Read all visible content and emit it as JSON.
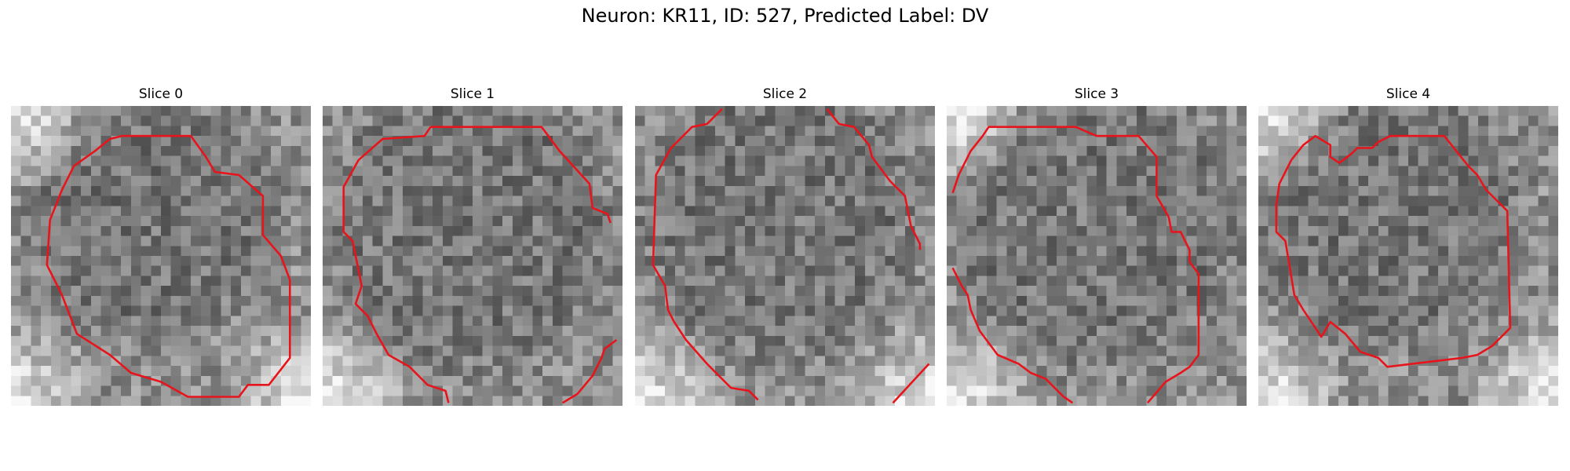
{
  "figure": {
    "title": "Neuron: KR11, ID: 527, Predicted Label: DV",
    "contour_color": "#e8141c"
  },
  "slices": [
    {
      "title": "Slice 0",
      "dark": [
        0.46,
        0.36,
        0.34
      ],
      "bright_corners": [
        "tl",
        "bl",
        "br"
      ],
      "lines": [
        [
          [
            0.37,
            0.1
          ],
          [
            0.6,
            0.1
          ],
          [
            0.65,
            0.17
          ],
          [
            0.68,
            0.22
          ],
          [
            0.76,
            0.23
          ],
          [
            0.84,
            0.3
          ],
          [
            0.84,
            0.43
          ],
          [
            0.9,
            0.5
          ],
          [
            0.93,
            0.58
          ],
          [
            0.93,
            0.84
          ],
          [
            0.86,
            0.93
          ],
          [
            0.79,
            0.93
          ],
          [
            0.76,
            0.97
          ],
          [
            0.59,
            0.97
          ],
          [
            0.5,
            0.92
          ],
          [
            0.4,
            0.89
          ],
          [
            0.33,
            0.83
          ],
          [
            0.22,
            0.76
          ],
          [
            0.17,
            0.63
          ],
          [
            0.12,
            0.53
          ],
          [
            0.13,
            0.38
          ],
          [
            0.17,
            0.28
          ],
          [
            0.21,
            0.2
          ],
          [
            0.28,
            0.15
          ],
          [
            0.33,
            0.11
          ],
          [
            0.37,
            0.1
          ]
        ]
      ]
    },
    {
      "title": "Slice 1",
      "dark": [
        0.5,
        0.4,
        0.4
      ],
      "bright_corners": [
        "bl"
      ],
      "lines": [
        [
          [
            0.36,
            0.07
          ],
          [
            0.73,
            0.07
          ],
          [
            0.79,
            0.15
          ],
          [
            0.89,
            0.26
          ],
          [
            0.9,
            0.34
          ],
          [
            0.95,
            0.36
          ],
          [
            0.96,
            0.39
          ]
        ],
        [
          [
            0.36,
            0.07
          ],
          [
            0.34,
            0.1
          ],
          [
            0.2,
            0.11
          ],
          [
            0.12,
            0.18
          ],
          [
            0.07,
            0.27
          ],
          [
            0.07,
            0.42
          ],
          [
            0.1,
            0.45
          ],
          [
            0.13,
            0.6
          ],
          [
            0.11,
            0.66
          ],
          [
            0.15,
            0.7
          ],
          [
            0.18,
            0.76
          ],
          [
            0.22,
            0.83
          ],
          [
            0.29,
            0.87
          ],
          [
            0.35,
            0.93
          ],
          [
            0.41,
            0.95
          ],
          [
            0.42,
            0.99
          ]
        ],
        [
          [
            0.8,
            0.99
          ],
          [
            0.85,
            0.96
          ],
          [
            0.9,
            0.9
          ],
          [
            0.93,
            0.84
          ],
          [
            0.94,
            0.81
          ],
          [
            0.98,
            0.78
          ]
        ],
        [
          [
            0.8,
            0.99
          ]
        ]
      ]
    },
    {
      "title": "Slice 2",
      "dark": [
        0.48,
        0.38,
        0.38
      ],
      "bright_corners": [
        "bl",
        "br"
      ],
      "lines": [
        [
          [
            0.29,
            0.01
          ],
          [
            0.24,
            0.06
          ],
          [
            0.19,
            0.07
          ],
          [
            0.12,
            0.14
          ],
          [
            0.07,
            0.23
          ],
          [
            0.06,
            0.53
          ],
          [
            0.1,
            0.6
          ],
          [
            0.11,
            0.68
          ],
          [
            0.13,
            0.72
          ],
          [
            0.17,
            0.78
          ],
          [
            0.24,
            0.86
          ],
          [
            0.32,
            0.94
          ],
          [
            0.38,
            0.95
          ],
          [
            0.41,
            0.98
          ]
        ],
        [
          [
            0.64,
            0.01
          ],
          [
            0.68,
            0.06
          ],
          [
            0.73,
            0.07
          ],
          [
            0.78,
            0.13
          ],
          [
            0.79,
            0.17
          ],
          [
            0.85,
            0.25
          ],
          [
            0.9,
            0.3
          ],
          [
            0.92,
            0.4
          ],
          [
            0.95,
            0.46
          ],
          [
            0.95,
            0.48
          ]
        ],
        [
          [
            0.86,
            0.99
          ],
          [
            0.98,
            0.86
          ]
        ]
      ]
    },
    {
      "title": "Slice 3",
      "dark": [
        0.5,
        0.4,
        0.4
      ],
      "bright_corners": [
        "tl",
        "bl"
      ],
      "lines": [
        [
          [
            0.02,
            0.29
          ],
          [
            0.04,
            0.23
          ],
          [
            0.06,
            0.19
          ],
          [
            0.08,
            0.15
          ],
          [
            0.12,
            0.1
          ],
          [
            0.14,
            0.07
          ],
          [
            0.43,
            0.07
          ],
          [
            0.5,
            0.1
          ],
          [
            0.64,
            0.1
          ],
          [
            0.7,
            0.17
          ],
          [
            0.7,
            0.3
          ],
          [
            0.74,
            0.37
          ],
          [
            0.75,
            0.42
          ],
          [
            0.78,
            0.42
          ],
          [
            0.81,
            0.48
          ],
          [
            0.81,
            0.52
          ],
          [
            0.84,
            0.56
          ],
          [
            0.84,
            0.83
          ],
          [
            0.81,
            0.87
          ],
          [
            0.78,
            0.89
          ],
          [
            0.73,
            0.92
          ],
          [
            0.67,
            0.99
          ]
        ],
        [
          [
            0.02,
            0.54
          ],
          [
            0.05,
            0.6
          ],
          [
            0.07,
            0.63
          ],
          [
            0.08,
            0.68
          ],
          [
            0.11,
            0.75
          ],
          [
            0.17,
            0.83
          ],
          [
            0.24,
            0.86
          ],
          [
            0.28,
            0.89
          ],
          [
            0.33,
            0.91
          ],
          [
            0.36,
            0.94
          ],
          [
            0.39,
            0.97
          ],
          [
            0.42,
            0.99
          ]
        ]
      ]
    },
    {
      "title": "Slice 4",
      "dark": [
        0.44,
        0.36,
        0.36
      ],
      "bright_corners": [
        "tl",
        "bl",
        "br"
      ],
      "lines": [
        [
          [
            0.11,
            0.18
          ],
          [
            0.15,
            0.13
          ],
          [
            0.19,
            0.1
          ],
          [
            0.24,
            0.13
          ],
          [
            0.24,
            0.17
          ],
          [
            0.27,
            0.19
          ],
          [
            0.31,
            0.16
          ],
          [
            0.33,
            0.14
          ],
          [
            0.38,
            0.14
          ],
          [
            0.4,
            0.12
          ],
          [
            0.44,
            0.1
          ],
          [
            0.62,
            0.1
          ],
          [
            0.66,
            0.15
          ],
          [
            0.7,
            0.2
          ],
          [
            0.73,
            0.23
          ],
          [
            0.76,
            0.28
          ],
          [
            0.83,
            0.35
          ],
          [
            0.84,
            0.74
          ],
          [
            0.78,
            0.8
          ],
          [
            0.73,
            0.83
          ],
          [
            0.68,
            0.84
          ],
          [
            0.43,
            0.87
          ],
          [
            0.4,
            0.84
          ],
          [
            0.34,
            0.82
          ],
          [
            0.29,
            0.76
          ],
          [
            0.24,
            0.72
          ],
          [
            0.21,
            0.77
          ],
          [
            0.19,
            0.74
          ],
          [
            0.15,
            0.68
          ],
          [
            0.12,
            0.63
          ],
          [
            0.11,
            0.57
          ],
          [
            0.09,
            0.45
          ],
          [
            0.06,
            0.42
          ],
          [
            0.06,
            0.33
          ],
          [
            0.07,
            0.26
          ],
          [
            0.11,
            0.18
          ]
        ]
      ]
    }
  ]
}
